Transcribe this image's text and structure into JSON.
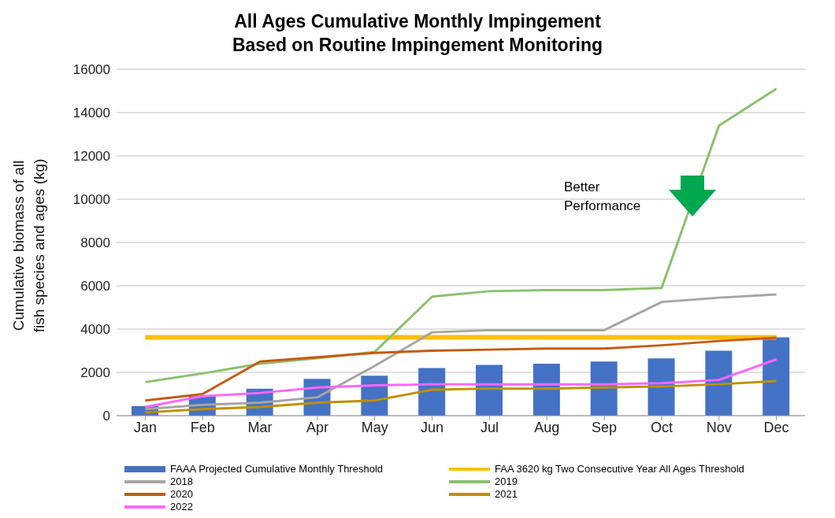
{
  "chart_data": {
    "type": "line",
    "title": "All Ages Cumulative Monthly Impingement\nBased on Routine Impingement Monitoring",
    "ylabel": "Cumulative biomass of all fish species and ages (kg)",
    "categories": [
      "Jan",
      "Feb",
      "Mar",
      "Apr",
      "May",
      "Jun",
      "Jul",
      "Aug",
      "Sep",
      "Oct",
      "Nov",
      "Dec"
    ],
    "series": [
      {
        "name": "FAAA Projected Cumulative Monthly Threshold",
        "type": "bar",
        "color": "#4472c4",
        "values": [
          450,
          900,
          1250,
          1700,
          1850,
          2200,
          2350,
          2400,
          2500,
          2650,
          3000,
          3620
        ]
      },
      {
        "name": "FAA 3620 kg Two Consecutive Year All Ages Threshold",
        "color": "#ffc000",
        "values": [
          3620,
          3620,
          3620,
          3620,
          3620,
          3620,
          3620,
          3620,
          3620,
          3620,
          3620,
          3620
        ]
      },
      {
        "name": "2018",
        "color": "#a5a5a5",
        "values": [
          300,
          500,
          600,
          850,
          2300,
          3850,
          3950,
          3950,
          3950,
          5250,
          5450,
          5600
        ]
      },
      {
        "name": "2019",
        "color": "#8bc06e",
        "values": [
          1550,
          1950,
          2400,
          2650,
          2950,
          5500,
          5750,
          5800,
          5800,
          5900,
          13400,
          15100
        ]
      },
      {
        "name": "2020",
        "color": "#c55a11",
        "values": [
          700,
          1000,
          2500,
          2700,
          2900,
          3000,
          3050,
          3100,
          3100,
          3250,
          3450,
          3600
        ]
      },
      {
        "name": "2021",
        "color": "#bf9000",
        "values": [
          150,
          300,
          400,
          600,
          700,
          1200,
          1250,
          1250,
          1300,
          1350,
          1450,
          1600
        ]
      },
      {
        "name": "2022",
        "color": "#ff66ff",
        "values": [
          400,
          900,
          1050,
          1300,
          1400,
          1450,
          1450,
          1450,
          1450,
          1500,
          1650,
          2600
        ]
      }
    ],
    "ylim": [
      0,
      16000
    ],
    "yticks": [
      0,
      2000,
      4000,
      6000,
      8000,
      10000,
      12000,
      14000,
      16000
    ],
    "grid": "y",
    "legend": "bottom",
    "marker": "none",
    "line_style": "solid",
    "annotations": [
      "Better\nPerformance"
    ]
  }
}
